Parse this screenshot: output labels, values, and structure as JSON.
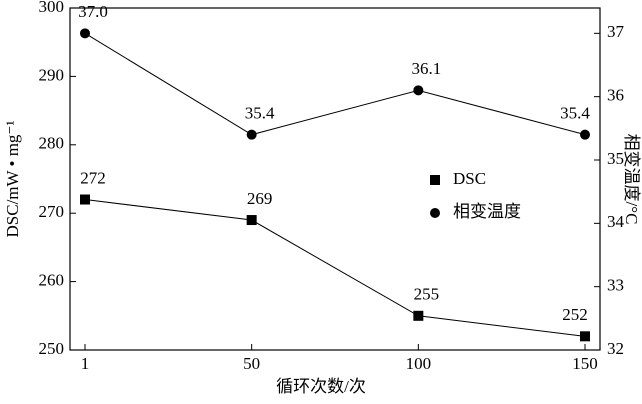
{
  "chart_data": {
    "type": "line",
    "xlabel": "循环次数/次",
    "ylabel": "DSC/mW • mg⁻¹",
    "y2label": "相变温度/°C",
    "categories": [
      "1",
      "50",
      "100",
      "150"
    ],
    "series": [
      {
        "name": "DSC",
        "color": "#000000",
        "marker": "square",
        "values": [
          272,
          269,
          255,
          252
        ]
      },
      {
        "name": "相变温度",
        "color": "#000000",
        "marker": "circle",
        "axis": "y2",
        "values": [
          37.0,
          35.4,
          36.1,
          35.4
        ],
        "value_labels": [
          "37.0",
          "35.4",
          "36.1",
          "35.4"
        ]
      }
    ],
    "ylim": [
      250,
      300
    ],
    "yticks": [
      250,
      260,
      270,
      280,
      290,
      300
    ],
    "y2lim": [
      32,
      37.4
    ],
    "y2ticks": [
      32,
      33,
      34,
      35,
      36,
      37
    ],
    "grid": false,
    "legend": "right"
  }
}
